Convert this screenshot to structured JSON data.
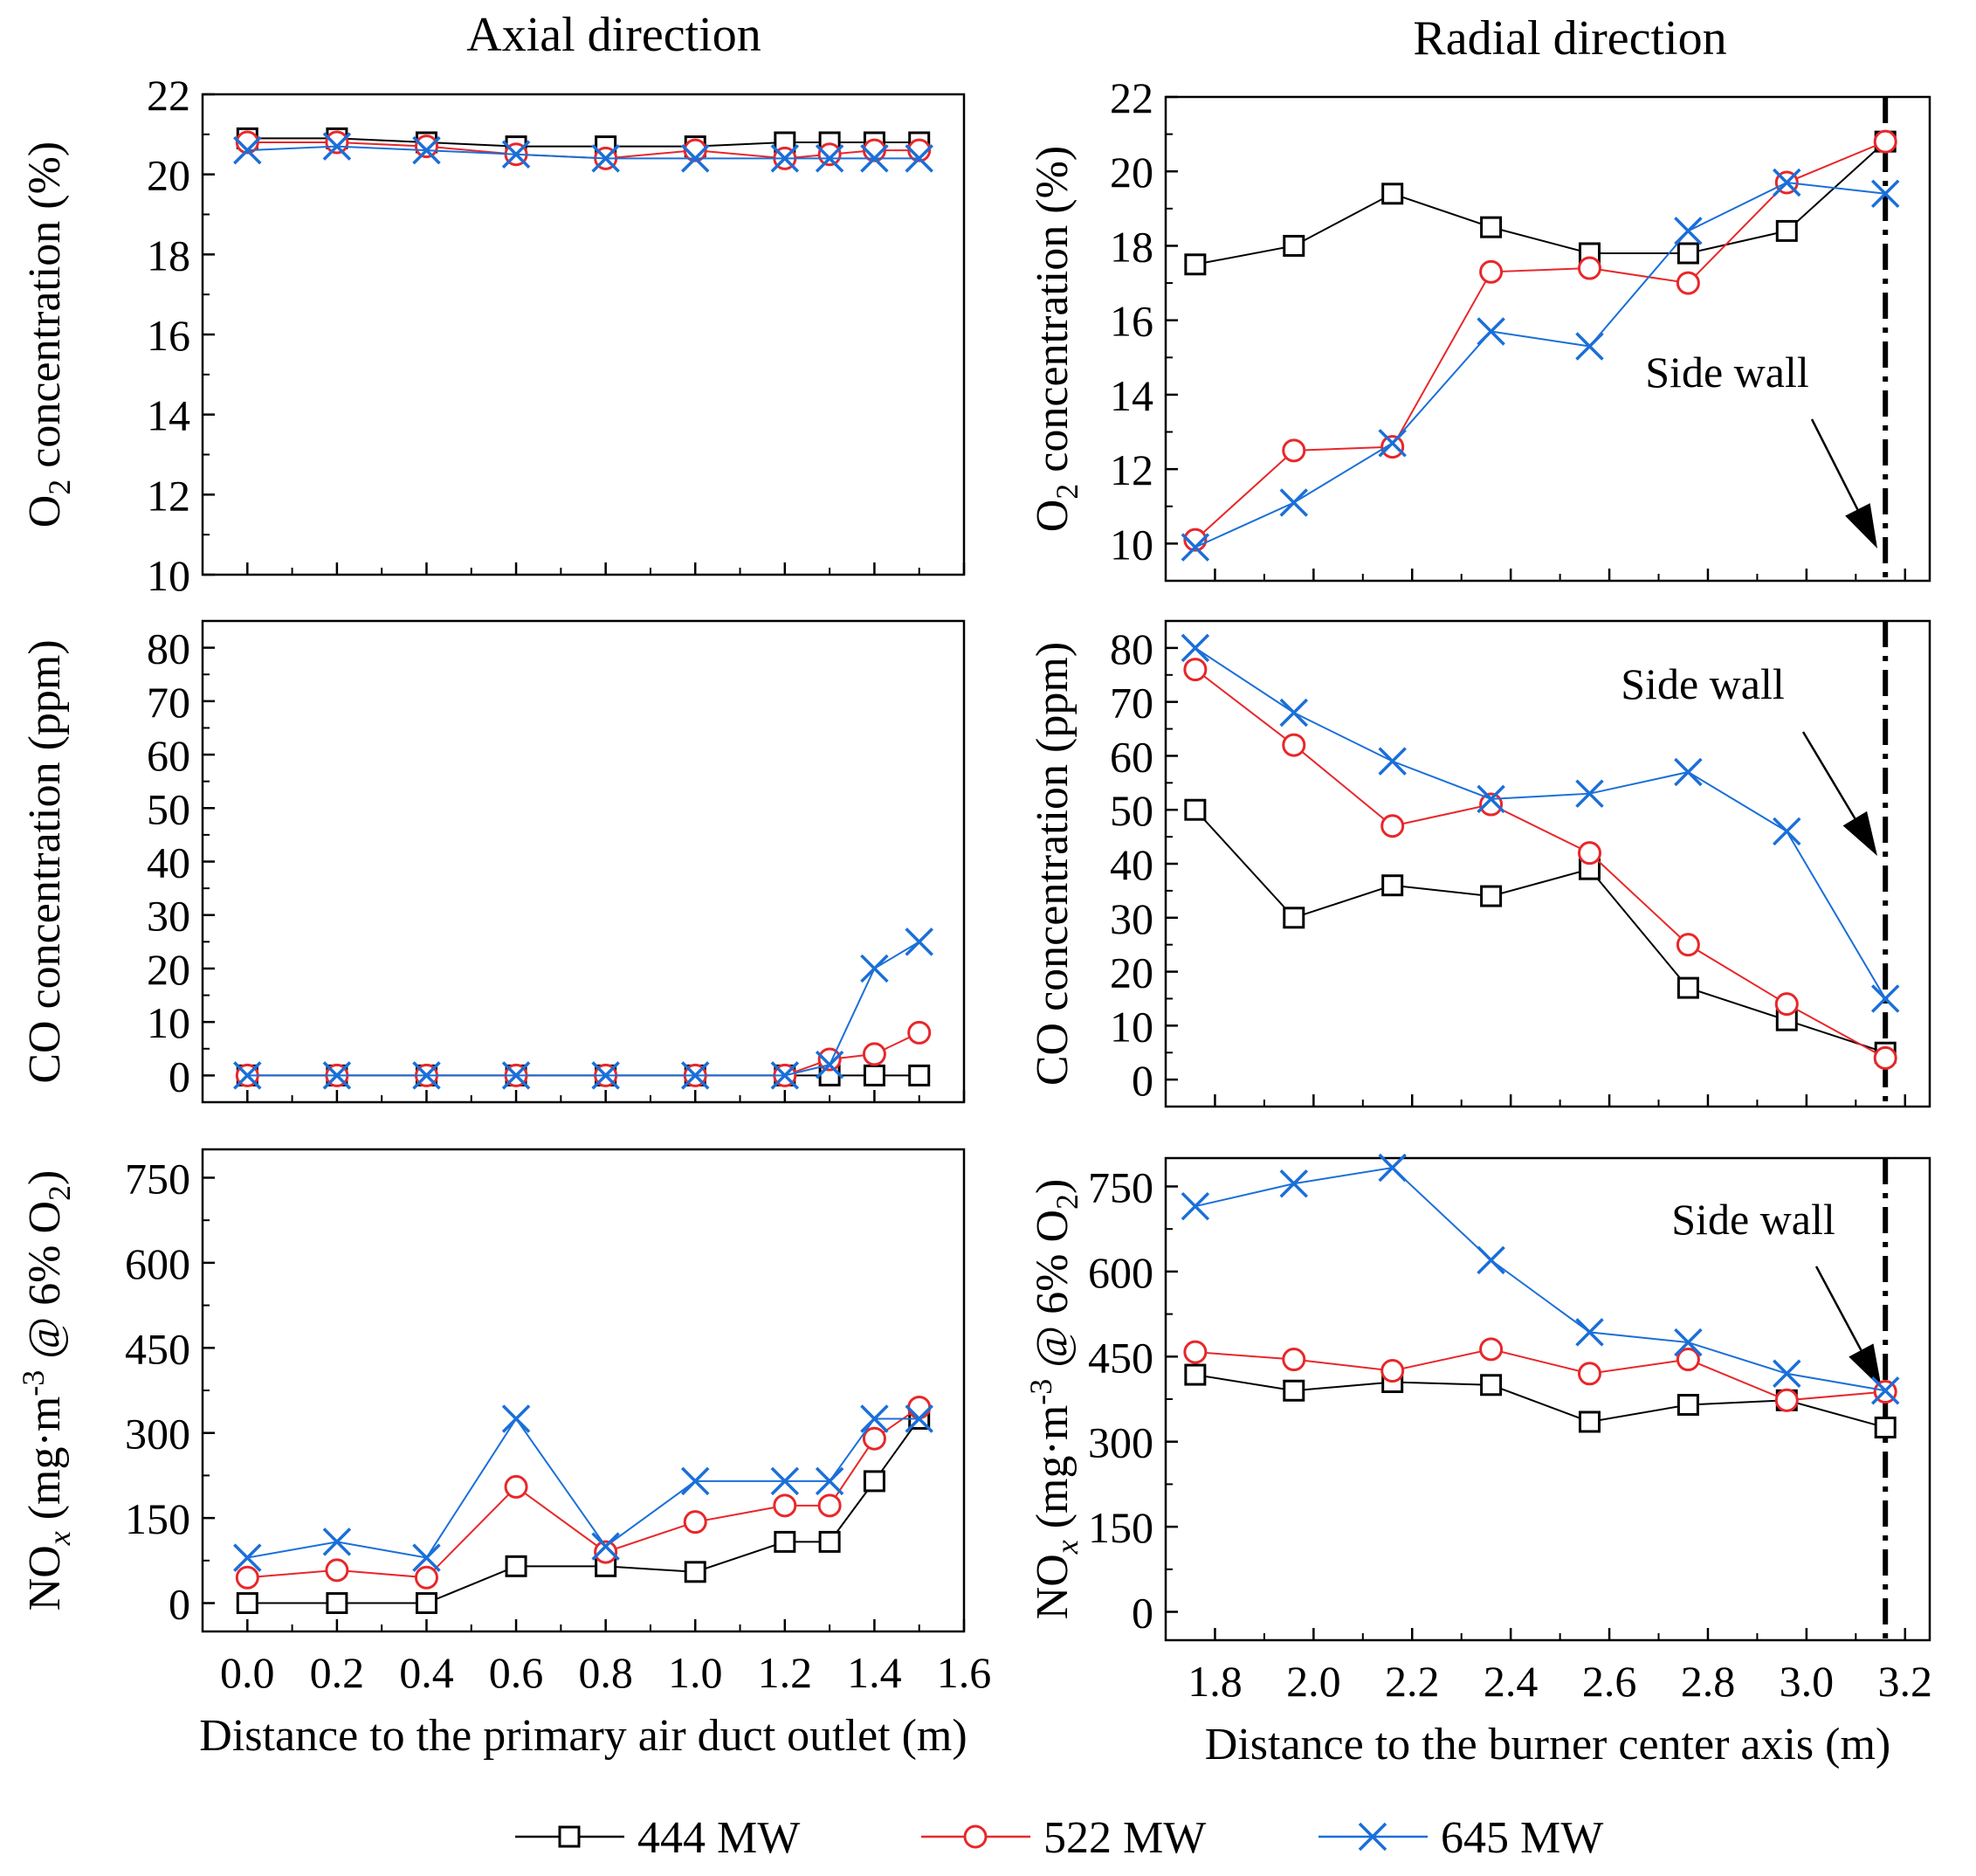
{
  "column_titles": {
    "axial": "Axial direction",
    "radial": "Radial direction"
  },
  "annotation_text": "Side wall",
  "legend": [
    {
      "name": "444 MW",
      "color": "#000000",
      "marker": "square"
    },
    {
      "name": "522 MW",
      "color": "#e8272a",
      "marker": "circle"
    },
    {
      "name": "645 MW",
      "color": "#1a6fd8",
      "marker": "cross"
    }
  ],
  "chart_data": [
    {
      "type": "line",
      "panel": "axial-o2",
      "ylabel": {
        "main": "O",
        "sub": "2",
        "rest": " concentration (%)"
      },
      "xlabel": "",
      "xlim": [
        -0.1,
        1.6
      ],
      "ylim": [
        10,
        22
      ],
      "xticks": [
        0.0,
        0.2,
        0.4,
        0.6,
        0.8,
        1.0,
        1.2,
        1.4,
        1.6
      ],
      "xtick_labels": [
        "0.0",
        "0.2",
        "0.4",
        "0.6",
        "0.8",
        "1.0",
        "1.2",
        "1.4",
        "1.6"
      ],
      "show_xtick_labels": false,
      "yticks": [
        10,
        12,
        14,
        16,
        18,
        20,
        22
      ],
      "ytick_labels": [
        "10",
        "12",
        "14",
        "16",
        "18",
        "20",
        "22"
      ],
      "x": [
        0.0,
        0.2,
        0.4,
        0.6,
        0.8,
        1.0,
        1.2,
        1.3,
        1.4,
        1.5
      ],
      "series": [
        {
          "name": "444 MW",
          "values": [
            20.9,
            20.9,
            20.8,
            20.7,
            20.7,
            20.7,
            20.8,
            20.8,
            20.8,
            20.8
          ]
        },
        {
          "name": "522 MW",
          "values": [
            20.8,
            20.8,
            20.7,
            20.5,
            20.4,
            20.6,
            20.4,
            20.5,
            20.6,
            20.6
          ]
        },
        {
          "name": "645 MW",
          "values": [
            20.6,
            20.7,
            20.6,
            20.5,
            20.4,
            20.4,
            20.4,
            20.4,
            20.4,
            20.4
          ]
        }
      ]
    },
    {
      "type": "line",
      "panel": "radial-o2",
      "ylabel": {
        "main": "O",
        "sub": "2",
        "rest": " concentration (%)"
      },
      "xlabel": "",
      "xlim": [
        1.7,
        3.25
      ],
      "ylim": [
        9,
        22
      ],
      "xticks": [
        1.8,
        2.0,
        2.2,
        2.4,
        2.6,
        2.8,
        3.0,
        3.2
      ],
      "xtick_labels": [
        "1.8",
        "2.0",
        "2.2",
        "2.4",
        "2.6",
        "2.8",
        "3.0",
        "3.2"
      ],
      "show_xtick_labels": false,
      "yticks": [
        10,
        12,
        14,
        16,
        18,
        20,
        22
      ],
      "ytick_labels": [
        "10",
        "12",
        "14",
        "16",
        "18",
        "20",
        "22"
      ],
      "x": [
        1.76,
        1.96,
        2.16,
        2.36,
        2.56,
        2.76,
        2.96,
        3.16
      ],
      "side_wall_x": 3.16,
      "series": [
        {
          "name": "444 MW",
          "values": [
            17.5,
            18.0,
            19.4,
            18.5,
            17.8,
            17.8,
            18.4,
            20.8
          ]
        },
        {
          "name": "522 MW",
          "values": [
            10.1,
            12.5,
            12.6,
            17.3,
            17.4,
            17.0,
            19.7,
            20.8
          ]
        },
        {
          "name": "645 MW",
          "values": [
            9.9,
            11.1,
            12.7,
            15.7,
            15.3,
            18.4,
            19.7,
            19.4
          ]
        }
      ]
    },
    {
      "type": "line",
      "panel": "axial-co",
      "ylabel": {
        "main": "CO concentration (ppm)",
        "sub": "",
        "rest": ""
      },
      "xlabel": "",
      "xlim": [
        -0.1,
        1.6
      ],
      "ylim": [
        -5,
        85
      ],
      "xticks": [
        0.0,
        0.2,
        0.4,
        0.6,
        0.8,
        1.0,
        1.2,
        1.4,
        1.6
      ],
      "xtick_labels": [
        "0.0",
        "0.2",
        "0.4",
        "0.6",
        "0.8",
        "1.0",
        "1.2",
        "1.4",
        "1.6"
      ],
      "show_xtick_labels": false,
      "yticks": [
        0,
        10,
        20,
        30,
        40,
        50,
        60,
        70,
        80
      ],
      "ytick_labels": [
        "0",
        "10",
        "20",
        "30",
        "40",
        "50",
        "60",
        "70",
        "80"
      ],
      "x": [
        0.0,
        0.2,
        0.4,
        0.6,
        0.8,
        1.0,
        1.2,
        1.3,
        1.4,
        1.5
      ],
      "series": [
        {
          "name": "444 MW",
          "values": [
            0,
            0,
            0,
            0,
            0,
            0,
            0,
            0,
            0,
            0
          ]
        },
        {
          "name": "522 MW",
          "values": [
            0,
            0,
            0,
            0,
            0,
            0,
            0,
            3,
            4,
            8
          ]
        },
        {
          "name": "645 MW",
          "values": [
            0,
            0,
            0,
            0,
            0,
            0,
            0,
            2,
            20,
            25
          ]
        }
      ]
    },
    {
      "type": "line",
      "panel": "radial-co",
      "ylabel": {
        "main": "CO concentration (ppm)",
        "sub": "",
        "rest": ""
      },
      "xlabel": "",
      "xlim": [
        1.7,
        3.25
      ],
      "ylim": [
        -5,
        85
      ],
      "xticks": [
        1.8,
        2.0,
        2.2,
        2.4,
        2.6,
        2.8,
        3.0,
        3.2
      ],
      "xtick_labels": [
        "1.8",
        "2.0",
        "2.2",
        "2.4",
        "2.6",
        "2.8",
        "3.0",
        "3.2"
      ],
      "show_xtick_labels": false,
      "yticks": [
        0,
        10,
        20,
        30,
        40,
        50,
        60,
        70,
        80
      ],
      "ytick_labels": [
        "0",
        "10",
        "20",
        "30",
        "40",
        "50",
        "60",
        "70",
        "80"
      ],
      "x": [
        1.76,
        1.96,
        2.16,
        2.36,
        2.56,
        2.76,
        2.96,
        3.16
      ],
      "side_wall_x": 3.16,
      "series": [
        {
          "name": "444 MW",
          "values": [
            50,
            30,
            36,
            34,
            39,
            17,
            11,
            5
          ]
        },
        {
          "name": "522 MW",
          "values": [
            76,
            62,
            47,
            51,
            42,
            25,
            14,
            4
          ]
        },
        {
          "name": "645 MW",
          "values": [
            80,
            68,
            59,
            52,
            53,
            57,
            46,
            15
          ]
        }
      ]
    },
    {
      "type": "line",
      "panel": "axial-nox",
      "ylabel": {
        "main": "NO",
        "sub": "x",
        "rest": " (mg·m",
        "sup": "-3",
        "rest2": " @ 6% O",
        "sub2": "2",
        "rest3": ")"
      },
      "xlabel": "Distance to the primary air duct outlet (m)",
      "xlim": [
        -0.1,
        1.6
      ],
      "ylim": [
        -50,
        800
      ],
      "xticks": [
        0.0,
        0.2,
        0.4,
        0.6,
        0.8,
        1.0,
        1.2,
        1.4,
        1.6
      ],
      "xtick_labels": [
        "0.0",
        "0.2",
        "0.4",
        "0.6",
        "0.8",
        "1.0",
        "1.2",
        "1.4",
        "1.6"
      ],
      "show_xtick_labels": true,
      "yticks": [
        0,
        150,
        300,
        450,
        600,
        750
      ],
      "ytick_labels": [
        "0",
        "150",
        "300",
        "450",
        "600",
        "750"
      ],
      "x": [
        0.0,
        0.2,
        0.4,
        0.6,
        0.8,
        1.0,
        1.2,
        1.3,
        1.4,
        1.5
      ],
      "series": [
        {
          "name": "444 MW",
          "values": [
            0,
            0,
            0,
            65,
            65,
            55,
            108,
            108,
            215,
            325
          ]
        },
        {
          "name": "522 MW",
          "values": [
            45,
            58,
            45,
            205,
            90,
            143,
            172,
            172,
            290,
            345
          ]
        },
        {
          "name": "645 MW",
          "values": [
            80,
            108,
            80,
            325,
            100,
            215,
            215,
            215,
            325,
            325
          ]
        }
      ]
    },
    {
      "type": "line",
      "panel": "radial-nox",
      "ylabel": {
        "main": "NO",
        "sub": "x",
        "rest": " (mg·m",
        "sup": "-3",
        "rest2": " @ 6% O",
        "sub2": "2",
        "rest3": ")"
      },
      "xlabel": "Distance to the burner center axis (m)",
      "xlim": [
        1.7,
        3.25
      ],
      "ylim": [
        -50,
        800
      ],
      "xticks": [
        1.8,
        2.0,
        2.2,
        2.4,
        2.6,
        2.8,
        3.0,
        3.2
      ],
      "xtick_labels": [
        "1.8",
        "2.0",
        "2.2",
        "2.4",
        "2.6",
        "2.8",
        "3.0",
        "3.2"
      ],
      "show_xtick_labels": true,
      "yticks": [
        0,
        150,
        300,
        450,
        600,
        750
      ],
      "ytick_labels": [
        "0",
        "150",
        "300",
        "450",
        "600",
        "750"
      ],
      "x": [
        1.76,
        1.96,
        2.16,
        2.36,
        2.56,
        2.76,
        2.96,
        3.16
      ],
      "side_wall_x": 3.16,
      "series": [
        {
          "name": "444 MW",
          "values": [
            418,
            390,
            405,
            400,
            335,
            365,
            373,
            325
          ]
        },
        {
          "name": "522 MW",
          "values": [
            458,
            445,
            425,
            463,
            420,
            445,
            373,
            388
          ]
        },
        {
          "name": "645 MW",
          "values": [
            715,
            755,
            783,
            620,
            493,
            475,
            420,
            390
          ]
        }
      ]
    }
  ]
}
